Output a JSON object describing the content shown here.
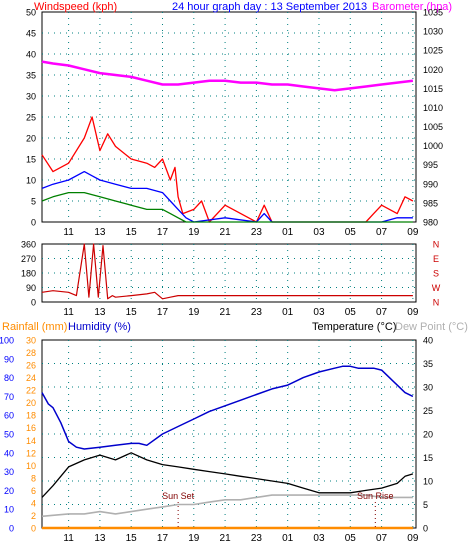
{
  "header": {
    "windspeed_label": "Windspeed (kph)",
    "title": "24 hour graph day : 13 September 2013",
    "barometer_label": "Barometer (hpa)"
  },
  "colors": {
    "wind_gust": "#ff0000",
    "wind_avg": "#0000ff",
    "wind_low": "#008000",
    "barometer": "#ff00ff",
    "wind_dir": "#cc0000",
    "rain": "#ff8c00",
    "humidity": "#0000cc",
    "temperature": "#000000",
    "dewpoint": "#b0b0b0",
    "grid": "#008080",
    "axis_text": "#0000ff"
  },
  "chart_data": [
    {
      "type": "line",
      "panel": "wind-barometer",
      "x_ticks": [
        "11",
        "13",
        "15",
        "17",
        "19",
        "21",
        "23",
        "01",
        "03",
        "05",
        "07",
        "09"
      ],
      "left_axis": {
        "label": "Windspeed (kph)",
        "ticks": [
          "0",
          "5",
          "10",
          "15",
          "20",
          "25",
          "30",
          "35",
          "40",
          "45",
          "50"
        ],
        "ylim": [
          0,
          50
        ]
      },
      "right_axis": {
        "label": "Barometer (hpa)",
        "ticks": [
          "980",
          "985",
          "990",
          "995",
          "1000",
          "1005",
          "1010",
          "1015",
          "1020",
          "1025",
          "1030",
          "1035"
        ],
        "ylim": [
          980,
          1035
        ]
      },
      "grid": true,
      "series": [
        {
          "key": "gust",
          "x": [
            9.3,
            10,
            11,
            12,
            12.5,
            13,
            13.5,
            14,
            15,
            16,
            16.5,
            17,
            17.5,
            17.8,
            18,
            18.3,
            19,
            19.5,
            20,
            21,
            22,
            23,
            23.5,
            24,
            25,
            26,
            27,
            28,
            29,
            30,
            30.5,
            31,
            32,
            32.5,
            33
          ],
          "values": [
            16,
            12,
            14,
            20,
            25,
            17,
            21,
            18,
            15,
            14,
            13,
            15,
            10,
            13,
            6,
            2,
            3,
            5,
            0,
            4,
            2,
            0,
            4,
            0,
            0,
            0,
            0,
            0,
            0,
            0,
            2,
            4,
            2,
            6,
            5
          ]
        },
        {
          "key": "avg",
          "x": [
            9.3,
            10,
            11,
            12,
            12.5,
            13,
            14,
            15,
            16,
            17,
            17.5,
            18,
            18.5,
            19,
            21,
            23,
            23.5,
            24,
            26,
            28,
            30,
            31,
            32,
            33
          ],
          "values": [
            8,
            9,
            10,
            12,
            11,
            10,
            9,
            8,
            8,
            7,
            5,
            3,
            1,
            0,
            1,
            0,
            2,
            0,
            0,
            0,
            0,
            0,
            1,
            1
          ]
        },
        {
          "key": "low",
          "x": [
            9.3,
            10,
            11,
            12,
            13,
            14,
            15,
            16,
            17,
            17.5,
            18,
            18.5,
            19,
            33
          ],
          "values": [
            5,
            6,
            7,
            7,
            6,
            5,
            4,
            3,
            3,
            2,
            1,
            0,
            0,
            0
          ]
        },
        {
          "key": "barometer",
          "x": [
            9.3,
            10,
            11,
            12,
            13,
            14,
            15,
            16,
            17,
            18,
            19,
            20,
            21,
            22,
            23,
            24,
            25,
            26,
            27,
            28,
            29,
            30,
            31,
            32,
            33
          ],
          "values": [
            1022,
            1021.5,
            1021,
            1020,
            1019,
            1018.5,
            1018,
            1017,
            1016,
            1016,
            1016.5,
            1017,
            1017,
            1016.5,
            1016.5,
            1016,
            1016,
            1015.5,
            1015,
            1014.5,
            1015,
            1015.5,
            1016,
            1016.5,
            1017
          ]
        }
      ]
    },
    {
      "type": "line",
      "panel": "wind-direction",
      "x_ticks": [
        "11",
        "13",
        "15",
        "17",
        "19",
        "21",
        "23",
        "01",
        "03",
        "05",
        "07",
        "09"
      ],
      "left_axis": {
        "ticks": [
          "0",
          "90",
          "180",
          "270",
          "360"
        ],
        "ylim": [
          0,
          360
        ]
      },
      "right_axis": {
        "ticks": [
          "N",
          "W",
          "S",
          "E",
          "N"
        ]
      },
      "grid": true,
      "series": [
        {
          "key": "direction",
          "x": [
            9.3,
            10,
            11,
            11.5,
            12,
            12.3,
            12.6,
            12.9,
            13.2,
            13.5,
            13.8,
            14,
            15,
            16,
            16.5,
            17,
            17.5,
            18,
            18.5,
            33
          ],
          "values": [
            60,
            70,
            60,
            40,
            360,
            30,
            360,
            30,
            350,
            20,
            40,
            30,
            40,
            50,
            60,
            20,
            30,
            40,
            40,
            40
          ]
        }
      ]
    },
    {
      "type": "line",
      "panel": "rain-humidity-temperature",
      "header": {
        "rainfall_label": "Rainfall (mm)",
        "humidity_label": "Humidity (%)",
        "temperature_label": "Temperature (°C)",
        "dewpoint_label": "Dew Point (°C)"
      },
      "x_ticks": [
        "11",
        "13",
        "15",
        "17",
        "19",
        "21",
        "23",
        "01",
        "03",
        "05",
        "07",
        "09"
      ],
      "humidity_axis": {
        "ticks": [
          "0",
          "10",
          "20",
          "30",
          "40",
          "50",
          "60",
          "70",
          "80",
          "90",
          "100"
        ],
        "ylim": [
          0,
          100
        ]
      },
      "rain_axis": {
        "ticks": [
          "0",
          "2",
          "4",
          "6",
          "8",
          "10",
          "12",
          "14",
          "16",
          "18",
          "20",
          "22",
          "24",
          "26",
          "28",
          "30"
        ],
        "ylim": [
          0,
          30
        ]
      },
      "temperature_axis": {
        "ticks": [
          "0",
          "5",
          "10",
          "15",
          "20",
          "25",
          "30",
          "35",
          "40"
        ],
        "ylim": [
          0,
          40
        ]
      },
      "annotations": [
        {
          "label": "Sun Set",
          "x": 18.0
        },
        {
          "label": "Sun Rise",
          "x": 30.6
        }
      ],
      "grid": true,
      "series": [
        {
          "key": "humidity",
          "x": [
            9.3,
            9.7,
            10,
            10.5,
            11,
            11.5,
            12,
            13,
            14,
            15,
            15.5,
            16,
            17,
            18,
            19,
            20,
            21,
            22,
            23,
            24,
            25,
            26,
            27,
            28,
            28.5,
            29,
            29.5,
            30,
            30.5,
            31,
            31.5,
            32,
            32.5,
            33
          ],
          "values": [
            72,
            66,
            64,
            56,
            46,
            43,
            42,
            43,
            44,
            45,
            45,
            44,
            50,
            54,
            58,
            62,
            65,
            68,
            71,
            74,
            76,
            80,
            83,
            85,
            86,
            86,
            85,
            85,
            85,
            84,
            80,
            76,
            72,
            70
          ]
        },
        {
          "key": "temperature",
          "x": [
            9.3,
            10,
            11,
            12,
            13,
            14,
            15,
            16,
            17,
            18,
            19,
            20,
            21,
            22,
            23,
            24,
            25,
            26,
            27,
            28,
            29,
            30,
            31,
            32,
            32.5,
            33
          ],
          "values": [
            6.5,
            9,
            13,
            14.5,
            15.5,
            14.5,
            16,
            14.5,
            13.5,
            13,
            12.5,
            12,
            11.5,
            11,
            10.5,
            10,
            9.5,
            8.5,
            7.5,
            7.5,
            7.5,
            8,
            8.5,
            9.5,
            11,
            11.5
          ]
        },
        {
          "key": "dewpoint",
          "x": [
            9.3,
            10,
            11,
            12,
            13,
            14,
            15,
            16,
            17,
            18,
            19,
            20,
            21,
            22,
            23,
            24,
            25,
            26,
            27,
            28,
            29,
            30,
            31,
            32,
            33
          ],
          "values": [
            2.5,
            2.7,
            3,
            3,
            3.5,
            3,
            3.5,
            4,
            4.5,
            5,
            5,
            5.5,
            6,
            6,
            6.5,
            7,
            7,
            7,
            7,
            7,
            7,
            7,
            6.5,
            6.5,
            6.5
          ]
        },
        {
          "key": "rainfall",
          "x": [
            9.3,
            33
          ],
          "values": [
            0,
            0
          ]
        }
      ]
    }
  ]
}
